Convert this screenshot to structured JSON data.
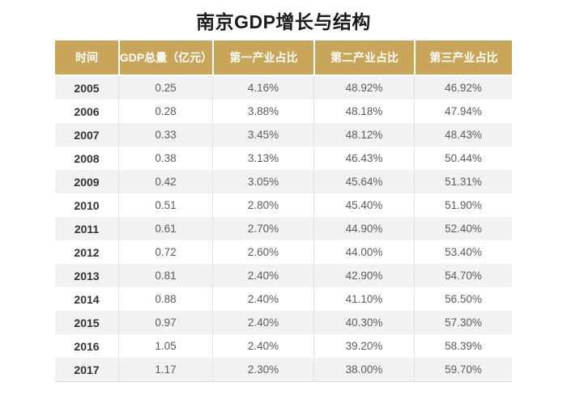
{
  "title": "南京GDP增长与结构",
  "colors": {
    "header_bg": "#c9a55a",
    "header_text": "#ffffff",
    "row_stripe_bg": "#f2f2f2",
    "row_bg": "#ffffff",
    "year_text": "#333333",
    "cell_text": "#5c5c5c",
    "title_text": "#1b1b1b"
  },
  "chart_data": {
    "type": "table",
    "title": "南京GDP增长与结构",
    "columns": [
      "时间",
      "GDP总量（亿元）",
      "第一产业占比",
      "第二产业占比",
      "第三产业占比"
    ],
    "rows": [
      [
        "2005",
        "0.25",
        "4.16%",
        "48.92%",
        "46.92%"
      ],
      [
        "2006",
        "0.28",
        "3.88%",
        "48.18%",
        "47.94%"
      ],
      [
        "2007",
        "0.33",
        "3.45%",
        "48.12%",
        "48.43%"
      ],
      [
        "2008",
        "0.38",
        "3.13%",
        "46.43%",
        "50.44%"
      ],
      [
        "2009",
        "0.42",
        "3.05%",
        "45.64%",
        "51.31%"
      ],
      [
        "2010",
        "0.51",
        "2.80%",
        "45.40%",
        "51.90%"
      ],
      [
        "2011",
        "0.61",
        "2.70%",
        "44.90%",
        "52.40%"
      ],
      [
        "2012",
        "0.72",
        "2.60%",
        "44.00%",
        "53.40%"
      ],
      [
        "2013",
        "0.81",
        "2.40%",
        "42.90%",
        "54.70%"
      ],
      [
        "2014",
        "0.88",
        "2.40%",
        "41.10%",
        "56.50%"
      ],
      [
        "2015",
        "0.97",
        "2.40%",
        "40.30%",
        "57.30%"
      ],
      [
        "2016",
        "1.05",
        "2.40%",
        "39.20%",
        "58.39%"
      ],
      [
        "2017",
        "1.17",
        "2.30%",
        "38.00%",
        "59.70%"
      ]
    ],
    "layout": {
      "stripe_first_row": true,
      "header_style": "gold-bar",
      "alignment": "center"
    }
  }
}
